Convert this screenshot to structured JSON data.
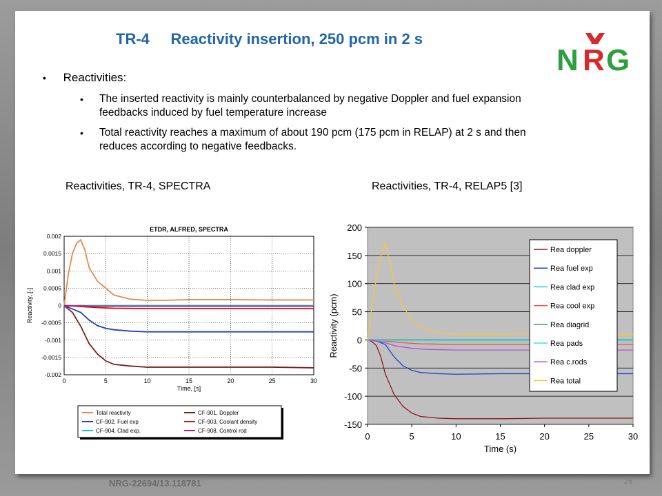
{
  "slide": {
    "title": "TR-4     Reactivity insertion, 250 pcm in 2 s",
    "logo_text": "NRG",
    "bullets": {
      "main": "Reactivities:",
      "sub": [
        [
          "The inserted reactivity is mainly counterbalanced by negative Doppler and fuel expansion",
          "feedbacks induced by fuel temperature increase"
        ],
        [
          "Total reactivity reaches a maximum of about 190 pcm (175 pcm in RELAP) at 2 s and then",
          "reduces  according to negative feedbacks."
        ]
      ]
    },
    "caption_left": "Reactivities, TR-4, SPECTRA",
    "caption_right": "Reactivities, TR-4, RELAP5 [3]",
    "footer": "NRG-22694/13.118781",
    "page_number": "26",
    "colors": {
      "title": "#1f66a8",
      "logo_green": "#2e9e3e",
      "logo_red": "#d62b2b"
    }
  },
  "chart_data": [
    {
      "type": "line",
      "title": "ETDR, ALFRED, SPECTRA",
      "xlabel": "Time, [s]",
      "ylabel": "Reactivity, [-]",
      "xlim": [
        0,
        30
      ],
      "ylim": [
        -0.002,
        0.002
      ],
      "xticks": [
        "0",
        "5",
        "10",
        "15",
        "20",
        "25",
        "30"
      ],
      "yticks": [
        "0.002",
        "0.0015",
        "0.001",
        "0.0005",
        "0",
        "-0.0005",
        "-0.001",
        "-0.0015",
        "-0.002"
      ],
      "grid": true,
      "legend": "bottom",
      "series": [
        {
          "name": "Total reactivity",
          "color": "#e8894a",
          "x": [
            0,
            0.5,
            1,
            1.5,
            2,
            2.5,
            3,
            4,
            5,
            6,
            8,
            10,
            12,
            15,
            20,
            25,
            30
          ],
          "y": [
            0,
            0.0009,
            0.0015,
            0.0018,
            0.0019,
            0.0016,
            0.0011,
            0.0007,
            0.0005,
            0.0003,
            0.00018,
            0.00015,
            0.00015,
            0.00017,
            0.00017,
            0.00016,
            0.00016
          ]
        },
        {
          "name": "CF-901, Doppler",
          "color": "#7a1c1c",
          "x": [
            0,
            1,
            2,
            3,
            4,
            5,
            6,
            8,
            10,
            15,
            20,
            25,
            30
          ],
          "y": [
            0,
            -0.0002,
            -0.0006,
            -0.0011,
            -0.0014,
            -0.0016,
            -0.0017,
            -0.00175,
            -0.00178,
            -0.00178,
            -0.00178,
            -0.00178,
            -0.0018
          ]
        },
        {
          "name": "CF-902, Fuel exp",
          "color": "#1f3fc8",
          "x": [
            0,
            1,
            2,
            3,
            4,
            5,
            6,
            8,
            10,
            15,
            20,
            25,
            30
          ],
          "y": [
            0,
            -0.0001,
            -0.0002,
            -0.00042,
            -0.00058,
            -0.00066,
            -0.0007,
            -0.00074,
            -0.00076,
            -0.00076,
            -0.00076,
            -0.00076,
            -0.00076
          ]
        },
        {
          "name": "CF-903, Coolant density",
          "color": "#c01818",
          "x": [
            0,
            2,
            4,
            6,
            10,
            15,
            20,
            25,
            30
          ],
          "y": [
            0,
            -3e-05,
            -6e-05,
            -8e-05,
            -9e-05,
            -9e-05,
            -9e-05,
            -9e-05,
            -9e-05
          ]
        },
        {
          "name": "CF-904, Clad exp.",
          "color": "#00c8d4",
          "x": [
            0,
            30
          ],
          "y": [
            0,
            0
          ]
        },
        {
          "name": "CF-908, Control rod",
          "color": "#d4156a",
          "x": [
            0,
            1,
            2,
            3,
            5,
            10,
            15,
            20,
            25,
            30
          ],
          "y": [
            0,
            -1e-05,
            -1e-05,
            -2e-05,
            -2e-05,
            -2e-05,
            -2e-05,
            -2e-05,
            -2e-05,
            -2e-05
          ]
        }
      ]
    },
    {
      "type": "line",
      "title": "",
      "xlabel": "Time (s)",
      "ylabel": "Reactivity (pcm)",
      "xlim": [
        0,
        30
      ],
      "ylim": [
        -150,
        200
      ],
      "xticks": [
        "0",
        "5",
        "10",
        "15",
        "20",
        "25",
        "30"
      ],
      "yticks": [
        "200",
        "150",
        "100",
        "50",
        "0",
        "-50",
        "-100",
        "-150"
      ],
      "grid": true,
      "legend": "top-right",
      "series": [
        {
          "name": "Rea doppler",
          "color": "#8b1a1a",
          "x": [
            0,
            0.5,
            1,
            1.5,
            2,
            3,
            4,
            5,
            6,
            8,
            10,
            15,
            20,
            25,
            30
          ],
          "y": [
            0,
            -3,
            -10,
            -30,
            -60,
            -97,
            -118,
            -130,
            -136,
            -139,
            -140,
            -140,
            -139,
            -139,
            -139
          ]
        },
        {
          "name": "Rea fuel exp",
          "color": "#1f3fd8",
          "x": [
            0,
            1,
            2,
            3,
            4,
            5,
            6,
            8,
            10,
            15,
            20,
            25,
            30
          ],
          "y": [
            0,
            -2,
            -8,
            -30,
            -46,
            -54,
            -58,
            -60,
            -61,
            -60,
            -60,
            -60,
            -60
          ]
        },
        {
          "name": "Rea clad exp",
          "color": "#20c8e0",
          "x": [
            0,
            30
          ],
          "y": [
            0,
            0
          ]
        },
        {
          "name": "Rea cool exp",
          "color": "#f0504a",
          "x": [
            0,
            2,
            4,
            6,
            10,
            15,
            20,
            25,
            30
          ],
          "y": [
            0,
            -2,
            -5,
            -7,
            -8,
            -8,
            -8,
            -8,
            -8
          ]
        },
        {
          "name": "Rea diagrid",
          "color": "#2e9e5e",
          "x": [
            0,
            30
          ],
          "y": [
            0,
            0
          ]
        },
        {
          "name": "Rea pads",
          "color": "#40d8f0",
          "x": [
            0,
            30
          ],
          "y": [
            -1,
            -1
          ]
        },
        {
          "name": "Rea c.rods",
          "color": "#b050d8",
          "x": [
            0,
            1,
            2,
            3,
            5,
            7,
            10,
            15,
            20,
            25,
            30
          ],
          "y": [
            0,
            -2,
            -5,
            -10,
            -15,
            -17,
            -18,
            -18,
            -18,
            -18,
            -18
          ]
        },
        {
          "name": "Rea total",
          "color": "#f0c83c",
          "x": [
            0,
            0.5,
            1,
            1.5,
            2,
            2.5,
            3,
            4,
            5,
            6,
            8,
            10,
            12,
            15,
            20,
            25,
            30
          ],
          "y": [
            0,
            60,
            110,
            150,
            172,
            140,
            100,
            60,
            35,
            22,
            12,
            10,
            10,
            10,
            12,
            10,
            10
          ]
        }
      ]
    }
  ]
}
